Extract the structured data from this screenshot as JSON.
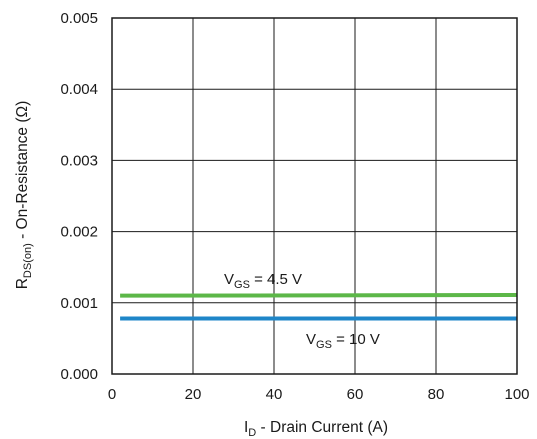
{
  "chart_data": {
    "type": "line",
    "xlabel": {
      "main": "I",
      "sub": "D",
      "rest": " - Drain Current (A)"
    },
    "ylabel": {
      "main": "R",
      "sub": "DS(on)",
      "rest": " - On-Resistance (Ω)"
    },
    "xlim": [
      0,
      100
    ],
    "ylim": [
      0,
      0.005
    ],
    "x_ticks": [
      0,
      20,
      40,
      60,
      80,
      100
    ],
    "y_ticks": [
      0.0,
      0.001,
      0.002,
      0.003,
      0.004,
      0.005
    ],
    "x_tick_labels": [
      "0",
      "20",
      "40",
      "60",
      "80",
      "100"
    ],
    "y_tick_labels": [
      "0.000",
      "0.001",
      "0.002",
      "0.003",
      "0.004",
      "0.005"
    ],
    "grid": true,
    "legend": "none",
    "series": [
      {
        "label": {
          "main": "V",
          "sub": "GS",
          "rest": " = 4.5 V"
        },
        "color": "#5cb748",
        "x": [
          2,
          100
        ],
        "y": [
          0.0011,
          0.00111
        ]
      },
      {
        "label": {
          "main": "V",
          "sub": "GS",
          "rest": " = 10 V"
        },
        "color": "#1e86c8",
        "x": [
          2,
          100
        ],
        "y": [
          0.00078,
          0.00078
        ]
      }
    ]
  }
}
